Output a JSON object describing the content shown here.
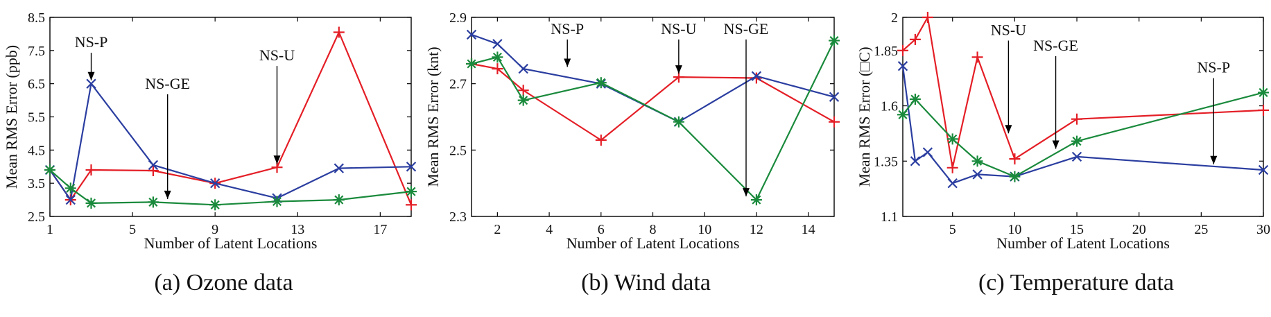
{
  "colors": {
    "NS-U": "#e41e26",
    "NS-P": "#2b3ea0",
    "NS-GE": "#1a8a3c",
    "axis": "#000000",
    "annotation": "#000000"
  },
  "chart_data": [
    {
      "type": "line",
      "caption": "(a) Ozone data",
      "xlabel": "Number of Latent Locations",
      "ylabel": "Mean RMS Error (ppb)",
      "xlim": [
        1,
        18.5
      ],
      "ylim": [
        2.5,
        8.5
      ],
      "xticks": [
        1,
        5,
        9,
        13,
        17
      ],
      "yticks": [
        2.5,
        3.5,
        4.5,
        5.5,
        6.5,
        7.5,
        8.5
      ],
      "series": [
        {
          "name": "NS-U",
          "marker": "plus",
          "x": [
            1,
            2,
            3,
            6,
            9,
            12,
            15,
            18.5
          ],
          "y": [
            3.9,
            3.0,
            3.9,
            3.88,
            3.5,
            3.98,
            8.05,
            2.85
          ]
        },
        {
          "name": "NS-P",
          "marker": "x",
          "x": [
            1,
            2,
            3,
            6,
            9,
            12,
            15,
            18.5
          ],
          "y": [
            3.9,
            3.0,
            6.5,
            4.05,
            3.5,
            3.05,
            3.95,
            4.0
          ]
        },
        {
          "name": "NS-GE",
          "marker": "asterisk",
          "x": [
            1,
            2,
            3,
            6,
            9,
            12,
            15,
            18.5
          ],
          "y": [
            3.9,
            3.35,
            2.9,
            2.93,
            2.85,
            2.95,
            3.0,
            3.25
          ]
        }
      ],
      "annotations": [
        {
          "text": "NS-P",
          "x": 3,
          "y": 6.5,
          "label_x": 3,
          "label_y": 7.6
        },
        {
          "text": "NS-GE",
          "x": 6.7,
          "y": 2.92,
          "label_x": 6.7,
          "label_y": 6.35
        },
        {
          "text": "NS-U",
          "x": 12,
          "y": 3.98,
          "label_x": 12,
          "label_y": 7.2
        }
      ]
    },
    {
      "type": "line",
      "caption": "(b) Wind data",
      "xlabel": "Number of Latent Locations",
      "ylabel": "Mean RMS Error (knt)",
      "xlim": [
        1,
        15
      ],
      "ylim": [
        2.3,
        2.9
      ],
      "xticks": [
        2,
        4,
        6,
        8,
        10,
        12,
        14
      ],
      "yticks": [
        2.3,
        2.5,
        2.7,
        2.9
      ],
      "series": [
        {
          "name": "NS-U",
          "marker": "plus",
          "x": [
            1,
            2,
            3,
            6,
            9,
            12,
            15
          ],
          "y": [
            2.76,
            2.745,
            2.68,
            2.53,
            2.72,
            2.717,
            2.585
          ]
        },
        {
          "name": "NS-P",
          "marker": "x",
          "x": [
            1,
            2,
            3,
            6,
            9,
            12,
            15
          ],
          "y": [
            2.848,
            2.82,
            2.745,
            2.7,
            2.585,
            2.723,
            2.66
          ]
        },
        {
          "name": "NS-GE",
          "marker": "asterisk",
          "x": [
            1,
            2,
            3,
            6,
            9,
            12,
            15
          ],
          "y": [
            2.76,
            2.78,
            2.65,
            2.703,
            2.585,
            2.35,
            2.83
          ]
        }
      ],
      "annotations": [
        {
          "text": "NS-P",
          "x": 4.7,
          "y": 2.74,
          "label_x": 4.7,
          "label_y": 2.85
        },
        {
          "text": "NS-U",
          "x": 9,
          "y": 2.72,
          "label_x": 9,
          "label_y": 2.85
        },
        {
          "text": "NS-GE",
          "x": 11.6,
          "y": 2.35,
          "label_x": 11.6,
          "label_y": 2.85
        }
      ]
    },
    {
      "type": "line",
      "caption": "(c) Temperature data",
      "xlabel": "Number of Latent Locations",
      "ylabel": "Mean RMS Error (□C)",
      "xlim": [
        1,
        30
      ],
      "ylim": [
        1.1,
        2
      ],
      "xticks": [
        5,
        10,
        15,
        20,
        25,
        30
      ],
      "yticks": [
        1.1,
        1.35,
        1.6,
        1.85,
        2
      ],
      "series": [
        {
          "name": "NS-U",
          "marker": "plus",
          "x": [
            1,
            2,
            3,
            5,
            7,
            10,
            15,
            30
          ],
          "y": [
            1.85,
            1.9,
            2.0,
            1.32,
            1.82,
            1.36,
            1.54,
            1.58
          ]
        },
        {
          "name": "NS-P",
          "marker": "x",
          "x": [
            1,
            2,
            3,
            5,
            7,
            10,
            15,
            30
          ],
          "y": [
            1.78,
            1.35,
            1.39,
            1.25,
            1.29,
            1.28,
            1.37,
            1.31
          ]
        },
        {
          "name": "NS-GE",
          "marker": "asterisk",
          "x": [
            1,
            2,
            3,
            5,
            7,
            10,
            15,
            30
          ],
          "y": [
            1.56,
            1.63,
            null,
            1.45,
            1.35,
            1.28,
            1.44,
            1.66
          ]
        }
      ],
      "annotations": [
        {
          "text": "NS-U",
          "x": 9.5,
          "y": 1.46,
          "label_x": 9.5,
          "label_y": 1.92
        },
        {
          "text": "NS-GE",
          "x": 13.3,
          "y": 1.39,
          "label_x": 13.3,
          "label_y": 1.85
        },
        {
          "text": "NS-P",
          "x": 26,
          "y": 1.32,
          "label_x": 26,
          "label_y": 1.75
        }
      ]
    }
  ]
}
